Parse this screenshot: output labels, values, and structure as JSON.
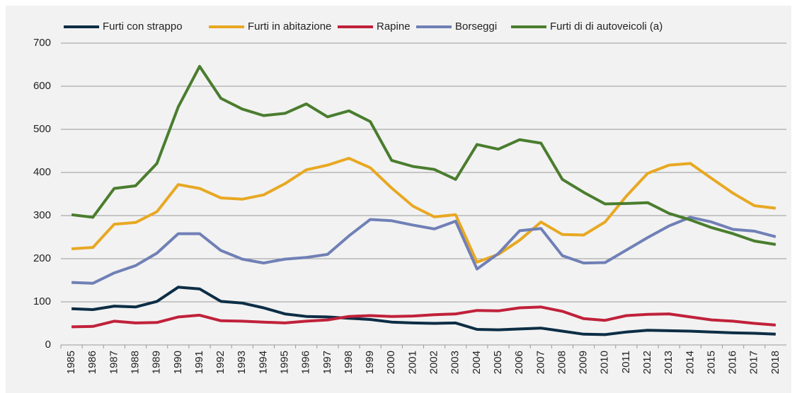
{
  "chart_data": {
    "type": "line",
    "categories": [
      "1985",
      "1986",
      "1987",
      "1988",
      "1989",
      "1990",
      "1991",
      "1992",
      "1993",
      "1994",
      "1995",
      "1996",
      "1997",
      "1998",
      "1999",
      "2000",
      "2001",
      "2002",
      "2003",
      "2004",
      "2005",
      "2006",
      "2007",
      "2008",
      "2009",
      "2010",
      "2011",
      "2012",
      "2013",
      "2014",
      "2015",
      "2016",
      "2017",
      "2018"
    ],
    "series": [
      {
        "name": "Furti con strappo",
        "color": "#0d2d45",
        "values": [
          84,
          82,
          90,
          88,
          101,
          134,
          130,
          101,
          97,
          86,
          72,
          66,
          65,
          62,
          59,
          53,
          51,
          50,
          51,
          36,
          35,
          37,
          39,
          32,
          25,
          24,
          30,
          34,
          33,
          32,
          30,
          28,
          27,
          25
        ]
      },
      {
        "name": "Furti in abitazione",
        "color": "#e8a823",
        "values": [
          223,
          226,
          280,
          284,
          309,
          372,
          363,
          341,
          338,
          348,
          374,
          406,
          417,
          433,
          411,
          364,
          322,
          297,
          302,
          192,
          210,
          243,
          285,
          256,
          255,
          285,
          345,
          398,
          417,
          421,
          386,
          352,
          323,
          317
        ]
      },
      {
        "name": "Rapine",
        "color": "#c0213a",
        "values": [
          42,
          43,
          55,
          51,
          52,
          65,
          69,
          56,
          55,
          53,
          51,
          55,
          58,
          66,
          68,
          66,
          67,
          70,
          72,
          80,
          79,
          86,
          88,
          78,
          61,
          57,
          68,
          71,
          72,
          65,
          58,
          55,
          50,
          46
        ]
      },
      {
        "name": "Borseggi",
        "color": "#7080b6",
        "values": [
          145,
          143,
          167,
          184,
          213,
          258,
          258,
          219,
          199,
          190,
          199,
          203,
          210,
          253,
          291,
          288,
          278,
          269,
          287,
          176,
          212,
          265,
          270,
          207,
          190,
          191,
          220,
          249,
          276,
          296,
          285,
          268,
          264,
          251
        ]
      },
      {
        "name": "Furti di di autoveicoli (a)",
        "color": "#4a7d2f",
        "values": [
          302,
          296,
          363,
          369,
          421,
          552,
          646,
          572,
          547,
          532,
          537,
          559,
          529,
          543,
          518,
          428,
          414,
          407,
          384,
          465,
          454,
          476,
          468,
          384,
          354,
          327,
          328,
          330,
          305,
          290,
          272,
          258,
          241,
          233
        ]
      }
    ],
    "ylim": [
      0,
      700
    ],
    "yticks": [
      0,
      100,
      200,
      300,
      400,
      500,
      600,
      700
    ],
    "grid": true,
    "legend": "top"
  }
}
